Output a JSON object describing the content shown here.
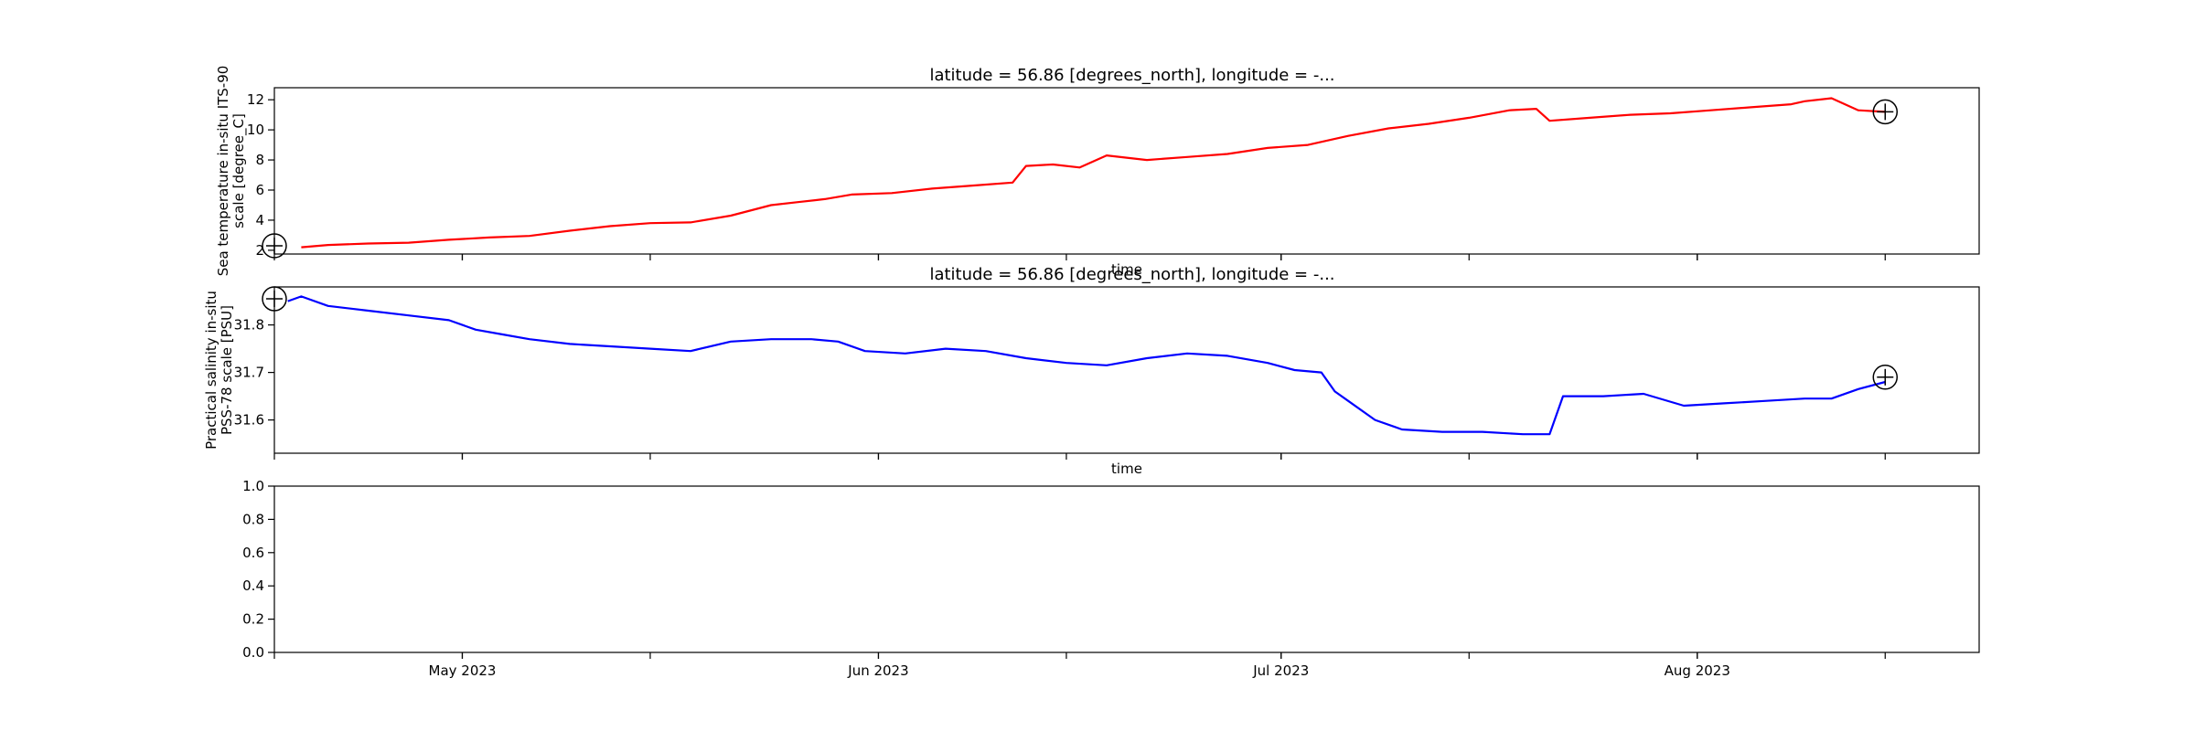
{
  "chart_data": [
    {
      "type": "line",
      "title": "latitude = 56.86 [degrees_north], longitude = -...",
      "xlabel": "time",
      "ylabel": "Sea temperature in-situ ITS-90 scale [degree_C]",
      "ylabel_lines": [
        "Sea temperature in-situ ITS-90",
        "scale [degree_C]"
      ],
      "xlim": [
        "2023-04-17",
        "2023-08-22"
      ],
      "ylim": [
        1.75,
        12.8
      ],
      "yticks": [
        2,
        4,
        6,
        8,
        10,
        12
      ],
      "show_xticklabels": false,
      "series": [
        {
          "color": "#ff0000",
          "x": [
            "2023-04-19",
            "2023-04-21",
            "2023-04-24",
            "2023-04-27",
            "2023-04-30",
            "2023-05-03",
            "2023-05-06",
            "2023-05-09",
            "2023-05-12",
            "2023-05-15",
            "2023-05-18",
            "2023-05-21",
            "2023-05-24",
            "2023-05-26",
            "2023-05-28",
            "2023-05-30",
            "2023-06-02",
            "2023-06-05",
            "2023-06-08",
            "2023-06-11",
            "2023-06-12",
            "2023-06-14",
            "2023-06-16",
            "2023-06-18",
            "2023-06-21",
            "2023-06-24",
            "2023-06-27",
            "2023-06-30",
            "2023-07-03",
            "2023-07-06",
            "2023-07-09",
            "2023-07-12",
            "2023-07-15",
            "2023-07-18",
            "2023-07-20",
            "2023-07-21",
            "2023-07-24",
            "2023-07-27",
            "2023-07-30",
            "2023-08-02",
            "2023-08-05",
            "2023-08-08",
            "2023-08-09",
            "2023-08-11",
            "2023-08-13",
            "2023-08-15"
          ],
          "y": [
            2.2,
            2.35,
            2.45,
            2.5,
            2.7,
            2.85,
            2.95,
            3.3,
            3.6,
            3.8,
            3.85,
            4.3,
            5.0,
            5.2,
            5.4,
            5.7,
            5.8,
            6.1,
            6.3,
            6.5,
            7.6,
            7.7,
            7.5,
            8.3,
            8.0,
            8.2,
            8.4,
            8.8,
            9.0,
            9.6,
            10.1,
            10.4,
            10.8,
            11.3,
            11.4,
            10.6,
            10.8,
            11.0,
            11.1,
            11.3,
            11.5,
            11.7,
            11.9,
            12.1,
            11.3,
            11.2
          ]
        }
      ],
      "markers": [
        {
          "x": "2023-04-17",
          "y": 2.3
        },
        {
          "x": "2023-08-15",
          "y": 11.2
        }
      ]
    },
    {
      "type": "line",
      "title": "latitude = 56.86 [degrees_north], longitude = -...",
      "xlabel": "time",
      "ylabel": "Practical salinity in-situ PSS-78 scale [PSU]",
      "ylabel_lines": [
        "Practical salinity in-situ",
        "PSS-78 scale [PSU]"
      ],
      "xlim": [
        "2023-04-17",
        "2023-08-22"
      ],
      "ylim": [
        31.53,
        31.88
      ],
      "yticks": [
        31.6,
        31.7,
        31.8
      ],
      "show_xticklabels": false,
      "series": [
        {
          "color": "#0000ff",
          "x": [
            "2023-04-18",
            "2023-04-19",
            "2023-04-21",
            "2023-04-24",
            "2023-04-27",
            "2023-04-30",
            "2023-05-02",
            "2023-05-04",
            "2023-05-06",
            "2023-05-09",
            "2023-05-12",
            "2023-05-15",
            "2023-05-18",
            "2023-05-21",
            "2023-05-24",
            "2023-05-27",
            "2023-05-29",
            "2023-05-31",
            "2023-06-03",
            "2023-06-06",
            "2023-06-09",
            "2023-06-12",
            "2023-06-15",
            "2023-06-18",
            "2023-06-21",
            "2023-06-24",
            "2023-06-27",
            "2023-06-30",
            "2023-07-02",
            "2023-07-04",
            "2023-07-05",
            "2023-07-06",
            "2023-07-08",
            "2023-07-10",
            "2023-07-13",
            "2023-07-16",
            "2023-07-19",
            "2023-07-21",
            "2023-07-22",
            "2023-07-25",
            "2023-07-28",
            "2023-07-31",
            "2023-08-03",
            "2023-08-06",
            "2023-08-09",
            "2023-08-11",
            "2023-08-13",
            "2023-08-15"
          ],
          "y": [
            31.85,
            31.86,
            31.84,
            31.83,
            31.82,
            31.81,
            31.79,
            31.78,
            31.77,
            31.76,
            31.755,
            31.75,
            31.745,
            31.765,
            31.77,
            31.77,
            31.765,
            31.745,
            31.74,
            31.75,
            31.745,
            31.73,
            31.72,
            31.715,
            31.73,
            31.74,
            31.735,
            31.72,
            31.705,
            31.7,
            31.66,
            31.64,
            31.6,
            31.58,
            31.575,
            31.575,
            31.57,
            31.57,
            31.65,
            31.65,
            31.655,
            31.63,
            31.635,
            31.64,
            31.645,
            31.645,
            31.665,
            31.68
          ]
        }
      ],
      "markers": [
        {
          "x": "2023-04-17",
          "y": 31.855
        },
        {
          "x": "2023-08-15",
          "y": 31.69
        }
      ]
    },
    {
      "type": "line",
      "title": "",
      "xlabel": "",
      "ylabel": "",
      "xlim": [
        "2023-04-17",
        "2023-08-22"
      ],
      "ylim": [
        0,
        1
      ],
      "yticks": [
        0.0,
        0.2,
        0.4,
        0.6,
        0.8,
        1.0
      ],
      "ytick_labels": [
        "0.0",
        "0.2",
        "0.4",
        "0.6",
        "0.8",
        "1.0"
      ],
      "show_xticklabels": true,
      "xticks_minor": [
        "2023-04-17",
        "2023-05-01",
        "2023-05-15",
        "2023-06-01",
        "2023-06-15",
        "2023-07-01",
        "2023-07-15",
        "2023-08-01",
        "2023-08-15",
        "2023-08-29"
      ],
      "xticks_labeled": [
        "2023-05-01",
        "2023-06-01",
        "2023-07-01",
        "2023-08-01"
      ],
      "xtick_labels": [
        "May 2023",
        "Jun 2023",
        "Jul 2023",
        "Aug 2023"
      ],
      "series": []
    }
  ]
}
